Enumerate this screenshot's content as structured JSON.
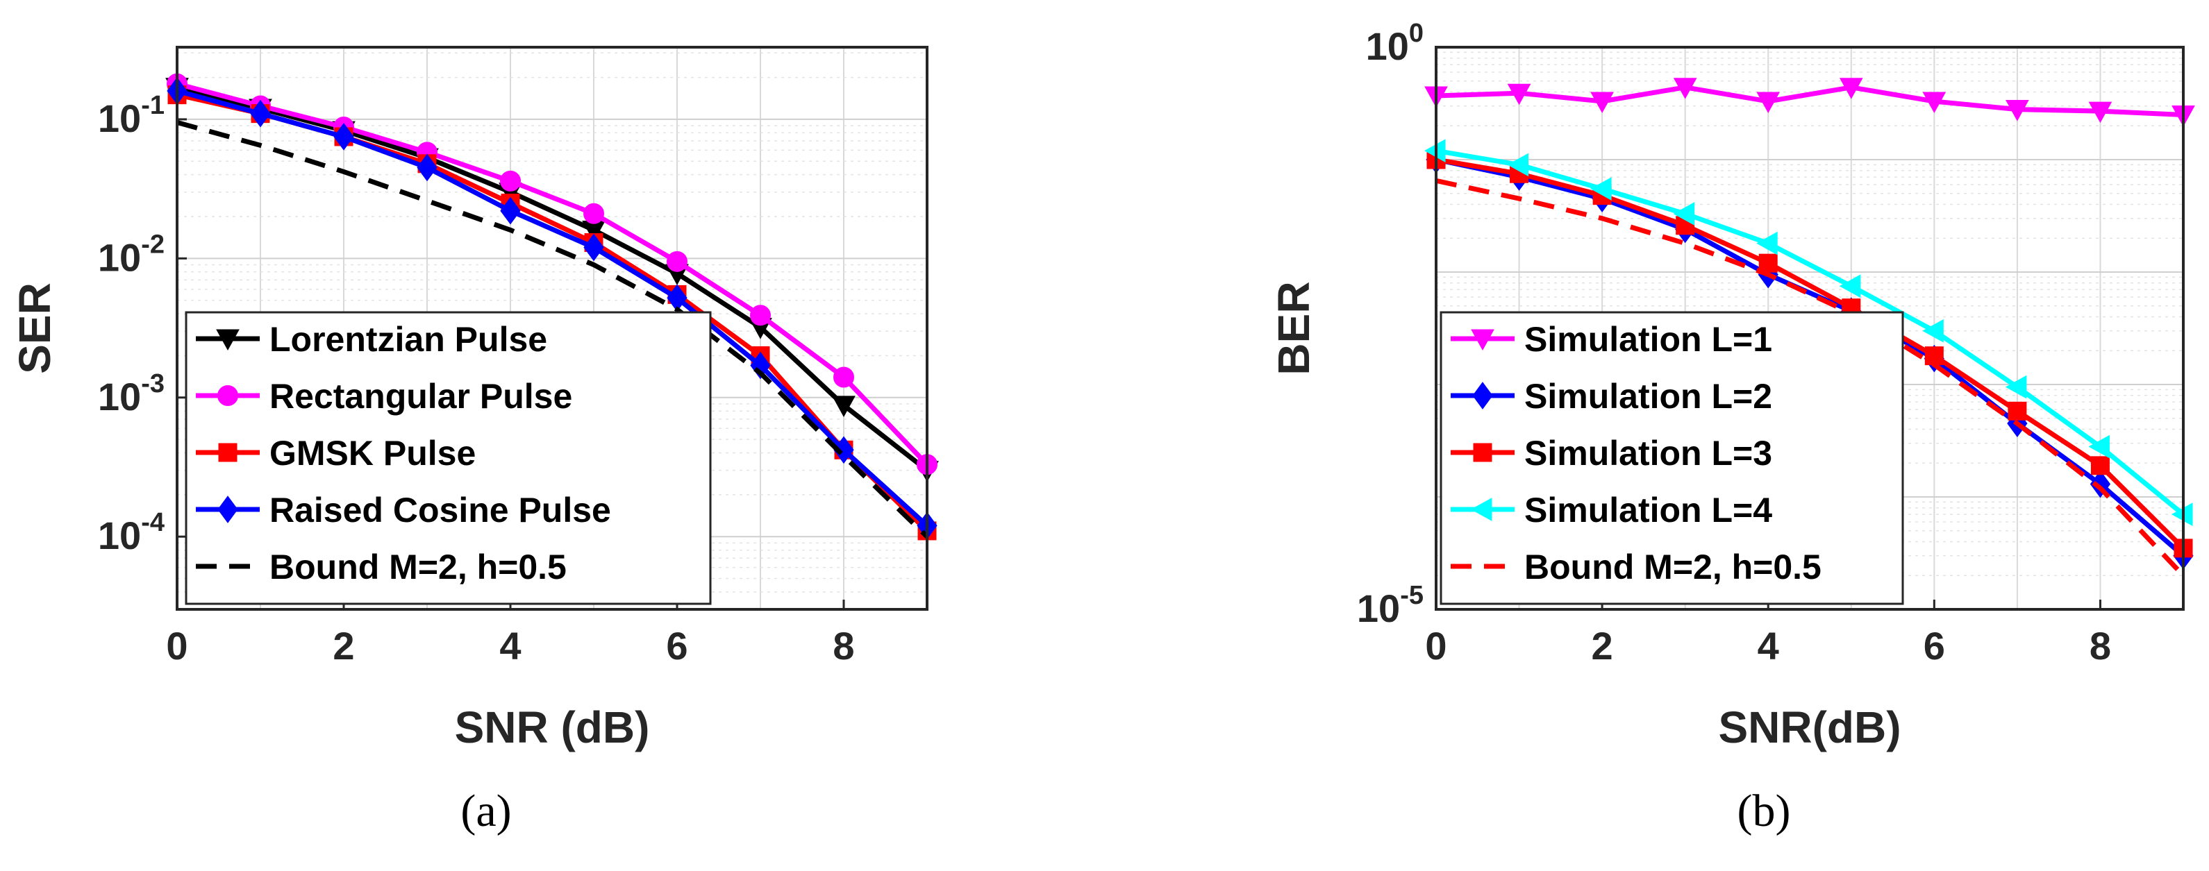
{
  "chart_data": [
    {
      "type": "line",
      "caption": "(a)",
      "xlabel": "SNR (dB)",
      "ylabel": "SER",
      "yscale": "log",
      "xlim": [
        0,
        9
      ],
      "ylim": [
        3e-05,
        0.33
      ],
      "grid": true,
      "legend_position": "bottom-left",
      "xticks": [
        {
          "v": 0,
          "label": "0"
        },
        {
          "v": 2,
          "label": "2"
        },
        {
          "v": 4,
          "label": "4"
        },
        {
          "v": 6,
          "label": "6"
        },
        {
          "v": 8,
          "label": "8"
        }
      ],
      "yticks": [
        {
          "v": 0.1,
          "base": "10",
          "exp": "-1"
        },
        {
          "v": 0.01,
          "base": "10",
          "exp": "-2"
        },
        {
          "v": 0.001,
          "base": "10",
          "exp": "-3"
        },
        {
          "v": 0.0001,
          "base": "10",
          "exp": "-4"
        }
      ],
      "series": [
        {
          "name": "Lorentzian Pulse",
          "color": "#000000",
          "marker": "triangle-down",
          "dash": "solid",
          "x": [
            0,
            1,
            2,
            3,
            4,
            5,
            6,
            7,
            8,
            9
          ],
          "values": [
            0.17,
            0.12,
            0.083,
            0.053,
            0.03,
            0.016,
            0.0078,
            0.0032,
            0.00088,
            0.0003
          ]
        },
        {
          "name": "Rectangular Pulse",
          "color": "#ff00ff",
          "marker": "circle",
          "dash": "solid",
          "x": [
            0,
            1,
            2,
            3,
            4,
            5,
            6,
            7,
            8,
            9
          ],
          "values": [
            0.18,
            0.125,
            0.088,
            0.058,
            0.036,
            0.021,
            0.0095,
            0.0039,
            0.0014,
            0.00033
          ]
        },
        {
          "name": "GMSK Pulse",
          "color": "#ff0000",
          "marker": "square",
          "dash": "solid",
          "x": [
            0,
            1,
            2,
            3,
            4,
            5,
            6,
            7,
            8,
            9
          ],
          "values": [
            0.15,
            0.11,
            0.075,
            0.048,
            0.025,
            0.013,
            0.0055,
            0.002,
            0.00042,
            0.00011
          ]
        },
        {
          "name": "Raised Cosine Pulse",
          "color": "#0000ff",
          "marker": "diamond",
          "dash": "solid",
          "x": [
            0,
            1,
            2,
            3,
            4,
            5,
            6,
            7,
            8,
            9
          ],
          "values": [
            0.16,
            0.11,
            0.075,
            0.045,
            0.022,
            0.012,
            0.0052,
            0.0017,
            0.00042,
            0.00012
          ]
        },
        {
          "name": "Bound M=2, h=0.5",
          "color": "#000000",
          "marker": "none",
          "dash": "dashed",
          "x": [
            0,
            1,
            2,
            3,
            4,
            5,
            6,
            7,
            8,
            9
          ],
          "values": [
            0.095,
            0.065,
            0.042,
            0.026,
            0.016,
            0.009,
            0.0043,
            0.0015,
            0.00038,
            0.0001
          ]
        }
      ]
    },
    {
      "type": "line",
      "caption": "(b)",
      "xlabel": "SNR(dB)",
      "ylabel": "BER",
      "yscale": "log",
      "xlim": [
        0,
        9
      ],
      "ylim": [
        1e-05,
        1
      ],
      "grid": true,
      "legend_position": "bottom-left",
      "xticks": [
        {
          "v": 0,
          "label": "0"
        },
        {
          "v": 2,
          "label": "2"
        },
        {
          "v": 4,
          "label": "4"
        },
        {
          "v": 6,
          "label": "6"
        },
        {
          "v": 8,
          "label": "8"
        }
      ],
      "yticks": [
        {
          "v": 1,
          "base": "10",
          "exp": "0"
        },
        {
          "v": 1e-05,
          "base": "10",
          "exp": "-5"
        }
      ],
      "series": [
        {
          "name": "Simulation L=1",
          "color": "#ff00ff",
          "marker": "triangle-down",
          "dash": "solid",
          "x": [
            0,
            1,
            2,
            3,
            4,
            5,
            6,
            7,
            8,
            9
          ],
          "values": [
            0.37,
            0.39,
            0.33,
            0.44,
            0.33,
            0.44,
            0.33,
            0.28,
            0.27,
            0.25
          ]
        },
        {
          "name": "Simulation L=2",
          "color": "#0000ff",
          "marker": "diamond",
          "dash": "solid",
          "x": [
            0,
            1,
            2,
            3,
            4,
            5,
            6,
            7,
            8,
            9
          ],
          "values": [
            0.1,
            0.07,
            0.045,
            0.024,
            0.0095,
            0.0045,
            0.0017,
            0.00045,
            0.00013,
            3e-05
          ]
        },
        {
          "name": "Simulation L=3",
          "color": "#ff0000",
          "marker": "square",
          "dash": "solid",
          "x": [
            0,
            1,
            2,
            3,
            4,
            5,
            6,
            7,
            8,
            9
          ],
          "values": [
            0.1,
            0.075,
            0.048,
            0.026,
            0.012,
            0.0048,
            0.0018,
            0.00058,
            0.00019,
            3.5e-05
          ]
        },
        {
          "name": "Simulation L=4",
          "color": "#00ffff",
          "marker": "triangle-left",
          "dash": "solid",
          "x": [
            0,
            1,
            2,
            3,
            4,
            5,
            6,
            7,
            8,
            9
          ],
          "values": [
            0.12,
            0.09,
            0.055,
            0.033,
            0.018,
            0.0075,
            0.003,
            0.00095,
            0.00028,
            7e-05
          ]
        },
        {
          "name": "Bound M=2, h=0.5",
          "color": "#ff0000",
          "marker": "none",
          "dash": "dashed",
          "x": [
            0,
            1,
            2,
            3,
            4,
            5,
            6,
            7,
            8,
            9
          ],
          "values": [
            0.065,
            0.045,
            0.03,
            0.018,
            0.0095,
            0.0043,
            0.0015,
            0.00045,
            0.00012,
            2e-05
          ]
        }
      ]
    }
  ]
}
